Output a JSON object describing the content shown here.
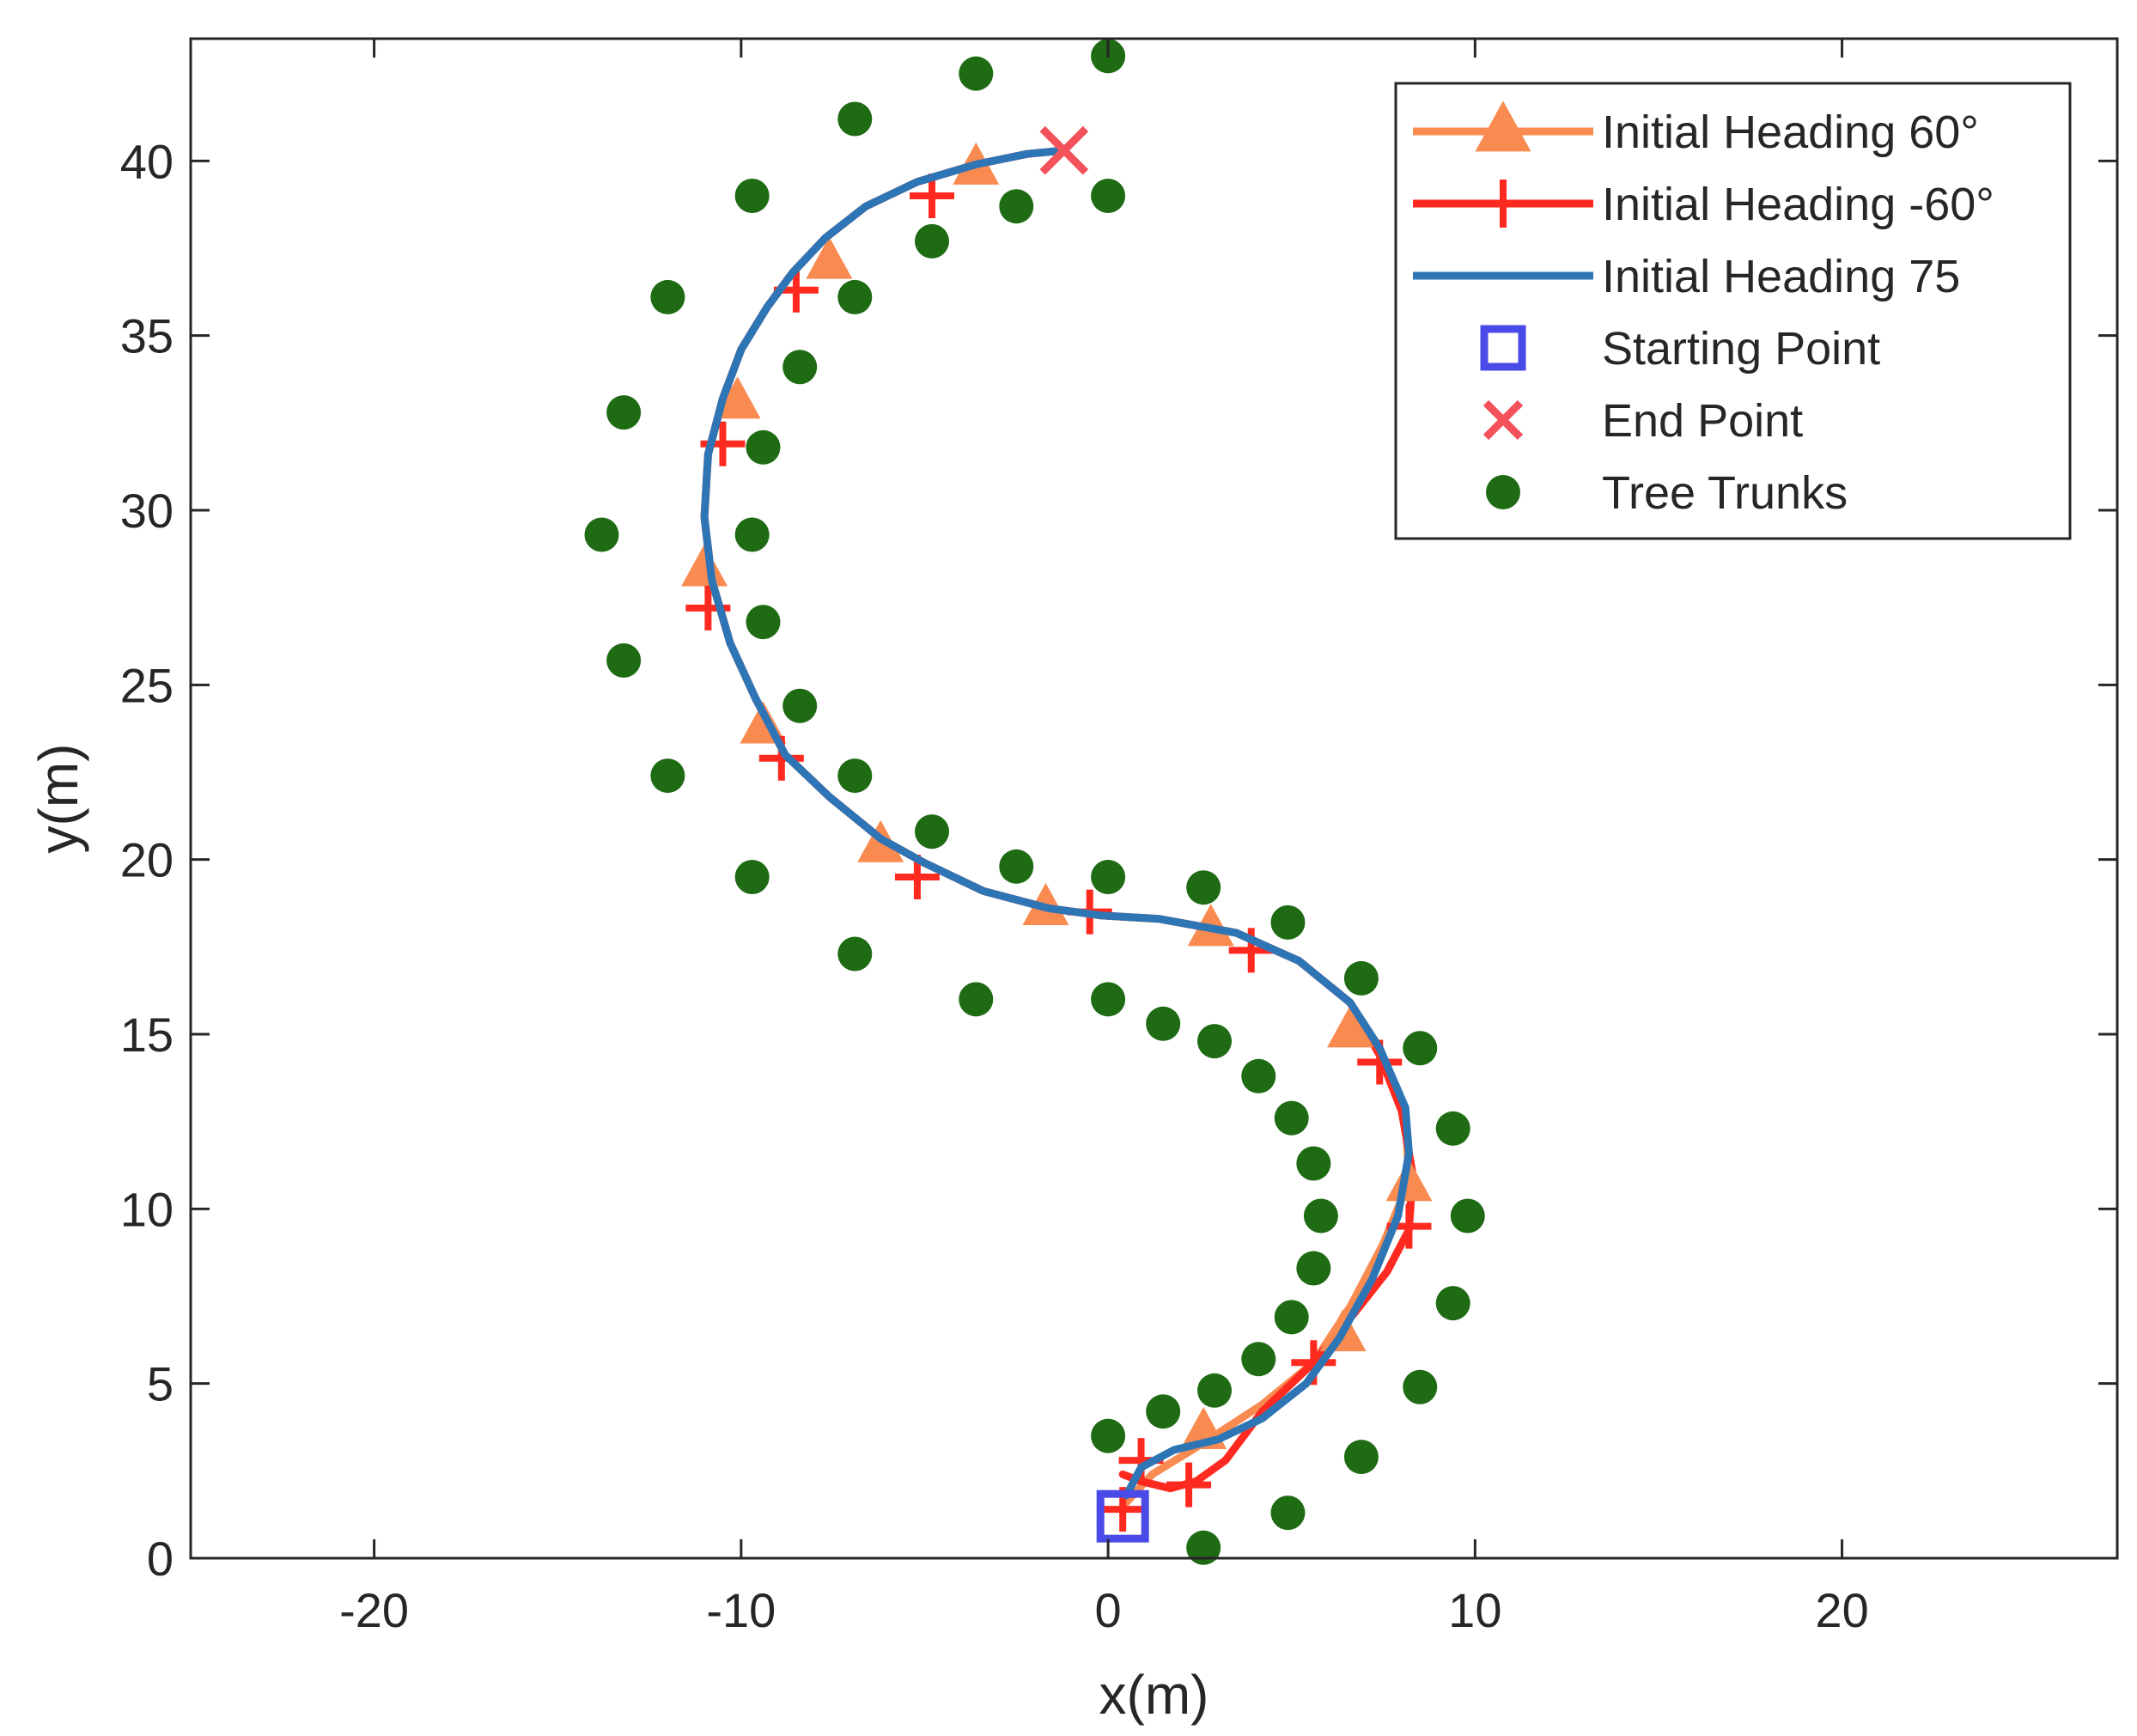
{
  "chart_data": {
    "type": "scatter",
    "title": "",
    "xlabel": "x(m)",
    "ylabel": "y(m)",
    "xlim": [
      -25,
      27.5
    ],
    "ylim": [
      0,
      43.5
    ],
    "xticks": [
      -20,
      -10,
      0,
      10,
      20
    ],
    "yticks": [
      0,
      5,
      10,
      15,
      20,
      25,
      30,
      35,
      40
    ],
    "xtick_labels": [
      "-20",
      "-10",
      "0",
      "10",
      "20"
    ],
    "ytick_labels": [
      "0",
      "5",
      "10",
      "15",
      "20",
      "25",
      "30",
      "35",
      "40"
    ],
    "grid": false,
    "legend_position": "top-right",
    "colors": {
      "heading_60": "#F98B51",
      "heading_neg60": "#FF2A1F",
      "heading_75": "#2E75B6",
      "start": "#4A4AE8",
      "end": "#F4525B",
      "trees": "#1E6B14",
      "axes": "#262626"
    },
    "series": [
      {
        "name": "Initial Heading 60°",
        "style": "line-triangle",
        "marker": "triangle",
        "x": [
          0.5,
          1.2,
          2.6,
          4.2,
          5.6,
          6.6,
          7.5,
          8.2,
          8.1,
          7.4,
          6.6,
          5.2,
          3.5,
          1.4,
          -0.2,
          -1.6,
          -3.4,
          -5.0,
          -6.2,
          -7.6,
          -8.8,
          -9.6,
          -10.3,
          -10.8,
          -11.0,
          -10.9,
          -10.5,
          -10.0,
          -9.3,
          -8.6,
          -7.7,
          -6.6,
          -5.2,
          -3.6,
          -2.2,
          -1.2
        ],
        "y": [
          1.6,
          2.4,
          3.3,
          4.4,
          5.6,
          7.2,
          9.0,
          10.8,
          12.7,
          14.6,
          15.9,
          17.1,
          17.9,
          18.3,
          18.4,
          18.6,
          19.1,
          19.9,
          20.6,
          21.8,
          23.0,
          24.6,
          26.2,
          28.0,
          29.8,
          31.6,
          33.2,
          34.6,
          35.8,
          36.8,
          37.8,
          38.7,
          39.4,
          39.9,
          40.2,
          40.3
        ],
        "marker_x": [
          2.6,
          6.4,
          8.2,
          6.6,
          2.8,
          -1.7,
          -6.2,
          -9.4,
          -11.0,
          -10.1,
          -7.6,
          -3.6
        ],
        "marker_y": [
          3.6,
          6.4,
          10.7,
          15.1,
          18.0,
          18.6,
          20.4,
          23.8,
          28.3,
          33.1,
          37.1,
          39.8
        ]
      },
      {
        "name": "Initial Heading -60°",
        "style": "line-plus",
        "marker": "plus",
        "x": [
          0.4,
          0.9,
          1.7,
          2.4,
          3.2,
          4.2,
          5.6,
          6.7,
          7.6,
          8.2,
          8.3,
          8.0,
          7.4,
          6.6,
          5.2,
          3.5,
          1.4,
          -0.2,
          -1.6,
          -3.4,
          -5.0,
          -6.2,
          -7.6,
          -8.8,
          -9.6,
          -10.3,
          -10.8,
          -11.0,
          -10.9,
          -10.5,
          -10.0,
          -9.3,
          -8.6,
          -7.7,
          -6.6,
          -5.2,
          -3.6,
          -2.2,
          -1.2
        ],
        "y": [
          2.4,
          2.2,
          2.0,
          2.2,
          2.8,
          4.2,
          5.6,
          7.0,
          8.2,
          9.4,
          11.0,
          12.8,
          14.4,
          15.9,
          17.1,
          17.9,
          18.3,
          18.4,
          18.6,
          19.1,
          19.9,
          20.6,
          21.8,
          23.0,
          24.6,
          26.2,
          28.0,
          29.8,
          31.6,
          33.2,
          34.6,
          35.8,
          36.8,
          37.8,
          38.7,
          39.4,
          39.9,
          40.2,
          40.3
        ],
        "marker_x": [
          0.4,
          0.9,
          2.2,
          5.6,
          8.2,
          7.4,
          3.9,
          -0.5,
          -5.2,
          -8.9,
          -10.9,
          -10.5,
          -8.5,
          -4.8
        ],
        "marker_y": [
          1.4,
          2.8,
          2.1,
          5.6,
          9.5,
          14.2,
          17.4,
          18.5,
          19.5,
          22.9,
          27.2,
          31.9,
          36.3,
          39.0
        ]
      },
      {
        "name": "Initial Heading 75",
        "style": "line",
        "marker": "none",
        "x": [
          0.5,
          0.9,
          1.8,
          3.0,
          4.2,
          5.4,
          6.3,
          7.2,
          7.9,
          8.2,
          8.1,
          7.4,
          6.6,
          5.2,
          3.5,
          1.4,
          -0.2,
          -1.6,
          -3.4,
          -5.0,
          -6.2,
          -7.6,
          -8.8,
          -9.6,
          -10.3,
          -10.8,
          -11.0,
          -10.9,
          -10.5,
          -10.0,
          -9.3,
          -8.6,
          -7.7,
          -6.6,
          -5.2,
          -3.6,
          -2.2,
          -1.2
        ],
        "y": [
          1.8,
          2.6,
          3.1,
          3.4,
          4.0,
          5.0,
          6.3,
          8.0,
          9.8,
          11.6,
          12.9,
          14.6,
          15.9,
          17.1,
          17.9,
          18.3,
          18.4,
          18.6,
          19.1,
          19.9,
          20.6,
          21.8,
          23.0,
          24.6,
          26.2,
          28.0,
          29.8,
          31.6,
          33.2,
          34.6,
          35.8,
          36.8,
          37.8,
          38.7,
          39.4,
          39.9,
          40.2,
          40.3
        ]
      }
    ],
    "starting_point": {
      "name": "Starting Point",
      "x": 0.4,
      "y": 1.2
    },
    "end_point": {
      "name": "End Point",
      "x": -1.2,
      "y": 40.3
    },
    "tree_trunks": {
      "name": "Tree Trunks",
      "x": [
        0.0,
        -3.6,
        -6.9,
        -9.7,
        0.0,
        -2.5,
        -4.8,
        -12.0,
        -6.9,
        -8.4,
        -13.2,
        -9.4,
        -13.8,
        -9.7,
        -13.2,
        -9.4,
        -8.4,
        -12.0,
        -6.9,
        -4.8,
        -2.5,
        -9.7,
        0.0,
        2.6,
        -6.9,
        4.9,
        -3.6,
        0.0,
        6.9,
        1.5,
        2.9,
        8.5,
        4.1,
        9.4,
        5.0,
        5.6,
        5.8,
        9.8,
        5.6,
        5.0,
        9.4,
        4.1,
        8.5,
        2.9,
        1.5,
        6.9,
        0.0,
        4.9,
        2.6
      ],
      "y": [
        43.0,
        42.5,
        41.2,
        39.0,
        39.0,
        38.7,
        37.7,
        36.1,
        36.1,
        34.1,
        32.8,
        31.8,
        29.3,
        29.3,
        25.7,
        26.8,
        24.4,
        22.4,
        22.4,
        20.8,
        19.8,
        19.5,
        19.5,
        19.2,
        17.3,
        18.2,
        16.0,
        16.0,
        16.6,
        15.3,
        14.8,
        14.6,
        13.8,
        12.3,
        12.6,
        11.3,
        9.8,
        9.8,
        8.3,
        6.9,
        7.3,
        5.7,
        4.9,
        4.8,
        4.2,
        2.9,
        3.5,
        1.3,
        0.3
      ]
    },
    "legend": [
      {
        "label": "Initial Heading 60°",
        "marker": "line-triangle"
      },
      {
        "label": "Initial Heading -60°",
        "marker": "line-plus"
      },
      {
        "label": "Initial Heading 75",
        "marker": "line"
      },
      {
        "label": "Starting Point",
        "marker": "square"
      },
      {
        "label": "End Point",
        "marker": "x"
      },
      {
        "label": "Tree Trunks",
        "marker": "circle"
      }
    ]
  }
}
